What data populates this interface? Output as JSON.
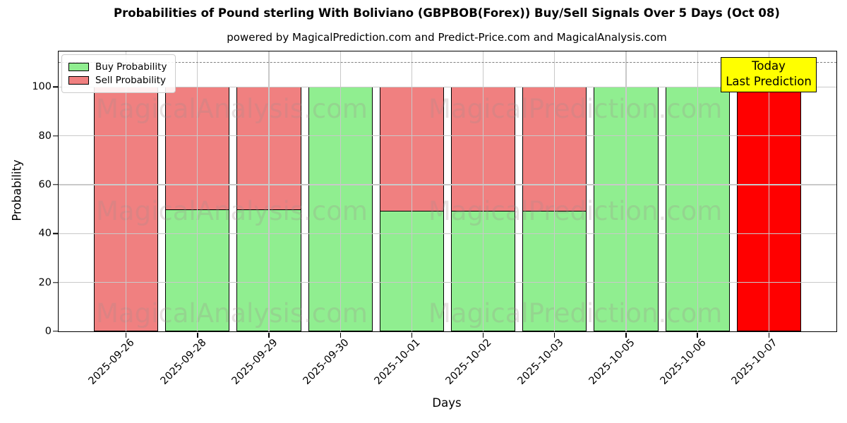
{
  "chart_data": {
    "type": "bar",
    "stacked": true,
    "title": "Probabilities of Pound sterling With Boliviano (GBPBOB(Forex)) Buy/Sell Signals Over 5 Days (Oct 08)",
    "subtitle": "powered by MagicalPrediction.com and Predict-Price.com and MagicalAnalysis.com",
    "xlabel": "Days",
    "ylabel": "Probability",
    "categories": [
      "2025-09-26",
      "2025-09-28",
      "2025-09-29",
      "2025-09-30",
      "2025-10-01",
      "2025-10-02",
      "2025-10-03",
      "2025-10-05",
      "2025-10-06",
      "2025-10-07"
    ],
    "series": [
      {
        "name": "Buy Probability",
        "color": "#90EE90",
        "values": [
          0,
          50,
          50,
          100,
          49.5,
          49.5,
          49.5,
          100,
          100,
          0
        ]
      },
      {
        "name": "Sell Probability",
        "color": "#F08080",
        "values": [
          100,
          50,
          50,
          0,
          50.5,
          50.5,
          50.5,
          0,
          0,
          100
        ]
      }
    ],
    "yticks": [
      0,
      20,
      40,
      60,
      80,
      100
    ],
    "ylim": [
      0,
      114.5
    ],
    "xlim": [
      -0.945,
      9.945
    ],
    "bar_width": 0.9,
    "dashed_line_y": 110,
    "grid": true,
    "legend_position": "upper left",
    "bar_edge_color": "#000000",
    "grid_color": "#c9c9c9",
    "dashed_line_color": "#7f7f7f",
    "today_box": {
      "lines": [
        "Today",
        "Last Prediction"
      ],
      "bg": "#FFFF00",
      "border": "#000000",
      "index": 9,
      "bar_color": "#FF0000"
    },
    "watermarks": {
      "left": "MagicalAnalysis.com",
      "right": "MagicalPrediction.com",
      "rows": 3
    }
  }
}
